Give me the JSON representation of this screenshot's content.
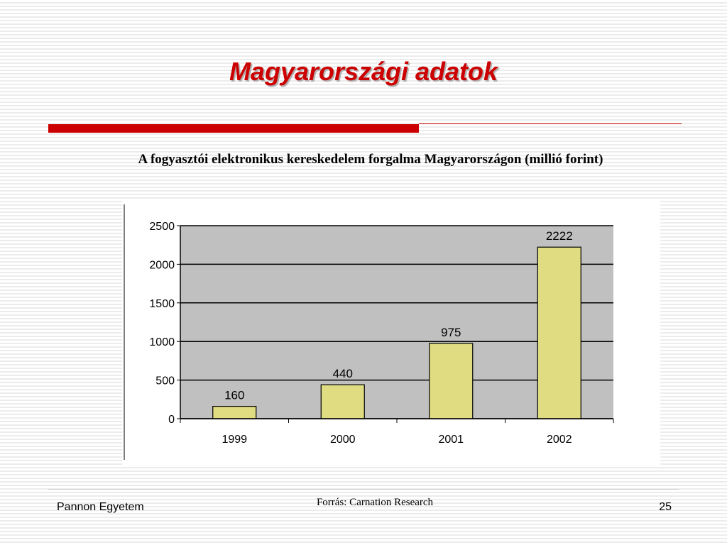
{
  "slide": {
    "title": "Magyarországi adatok",
    "subtitle": "A fogyasztói elektronikus kereskedelem forgalma Magyarországon (millió forint)"
  },
  "footer": {
    "institution": "Pannon Egyetem",
    "source": "Forrás: Carnation Research",
    "page_number": "25"
  },
  "colors": {
    "accent": "#cc0000",
    "plot_background": "#c0c0c0",
    "bar_fill": "#e0dc82"
  },
  "chart_data": {
    "type": "bar",
    "title": "",
    "xlabel": "",
    "ylabel": "",
    "categories": [
      "1999",
      "2000",
      "2001",
      "2002"
    ],
    "values": [
      160,
      440,
      975,
      2222
    ],
    "data_labels": [
      "160",
      "440",
      "975",
      "2222"
    ],
    "ylim": [
      0,
      2500
    ],
    "yticks": [
      0,
      500,
      1000,
      1500,
      2000,
      2500
    ],
    "ytick_labels": [
      "0",
      "500",
      "1000",
      "1500",
      "2000",
      "2500"
    ],
    "grid": true,
    "legend": "none"
  }
}
